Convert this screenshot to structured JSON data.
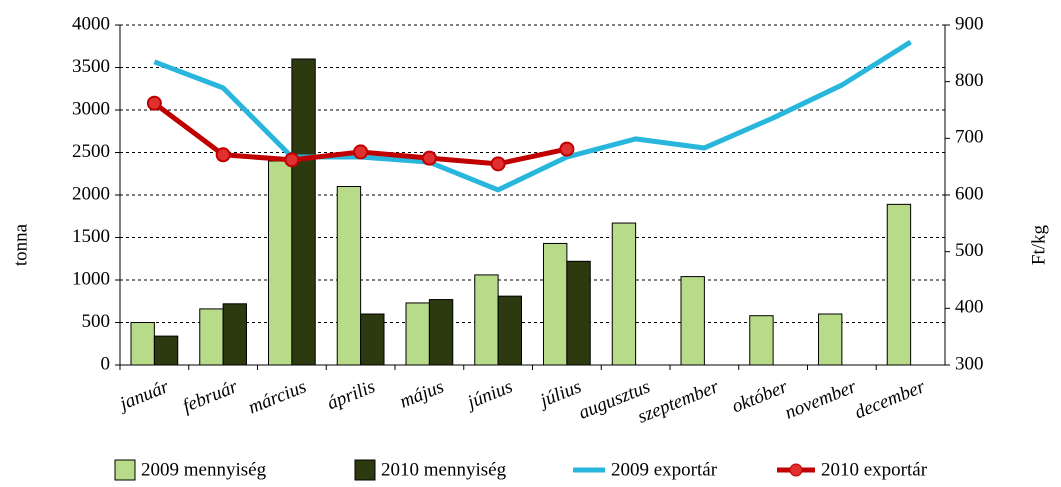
{
  "chart_data": {
    "type": "bar-line",
    "categories": [
      "január",
      "február",
      "március",
      "április",
      "május",
      "június",
      "július",
      "augusztus",
      "szeptember",
      "október",
      "november",
      "december"
    ],
    "series": [
      {
        "name": "2009 mennyiség",
        "type": "bar",
        "color": "#b8db8a",
        "values": [
          500,
          660,
          2400,
          2100,
          730,
          1060,
          1430,
          1670,
          1040,
          580,
          600,
          1890
        ]
      },
      {
        "name": "2010 mennyiség",
        "type": "bar",
        "color": "#2d3a10",
        "values": [
          340,
          720,
          3600,
          600,
          770,
          810,
          1220,
          null,
          null,
          null,
          null,
          null
        ]
      },
      {
        "name": "2009 exportár",
        "type": "line",
        "axis": "y2",
        "color": "#29b6dc",
        "values": [
          835,
          789,
          667,
          667,
          658,
          609,
          667,
          699,
          683,
          736,
          794,
          870
        ]
      },
      {
        "name": "2010 exportár",
        "type": "line",
        "axis": "y2",
        "color": "#c00000",
        "marker": true,
        "values": [
          762,
          671,
          662,
          676,
          665,
          655,
          681,
          null,
          null,
          null,
          null,
          null
        ]
      }
    ],
    "ylabel": "tonna",
    "y2label": "Ft/kg",
    "ylim": [
      0,
      4000
    ],
    "yticks": [
      0,
      500,
      1000,
      1500,
      2000,
      2500,
      3000,
      3500,
      4000
    ],
    "y2lim": [
      300,
      900
    ],
    "y2ticks": [
      300,
      400,
      500,
      600,
      700,
      800,
      900
    ],
    "grid": true,
    "legend": "bottom"
  }
}
